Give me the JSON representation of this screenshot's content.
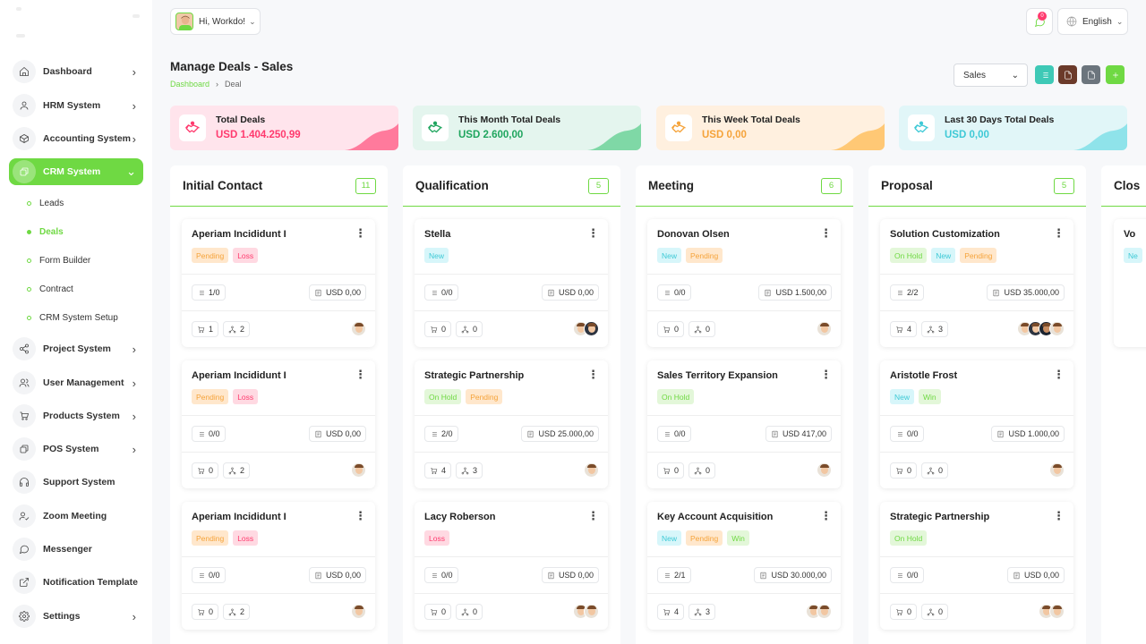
{
  "sidebar": {
    "items": [
      {
        "label": "Dashboard",
        "icon": "home-icon",
        "chevron": true
      },
      {
        "label": "HRM System",
        "icon": "user-icon",
        "chevron": true
      },
      {
        "label": "Accounting System",
        "icon": "box-icon",
        "chevron": true
      },
      {
        "label": "CRM System",
        "icon": "layers-icon",
        "chevron": true,
        "active": true
      },
      {
        "label": "Project System",
        "icon": "share-icon",
        "chevron": true
      },
      {
        "label": "User Management",
        "icon": "users-icon",
        "chevron": true
      },
      {
        "label": "Products System",
        "icon": "cart-icon",
        "chevron": true
      },
      {
        "label": "POS System",
        "icon": "layers-icon",
        "chevron": true
      },
      {
        "label": "Support System",
        "icon": "headphones-icon",
        "chevron": false
      },
      {
        "label": "Zoom Meeting",
        "icon": "user-check-icon",
        "chevron": false
      },
      {
        "label": "Messenger",
        "icon": "message-icon",
        "chevron": false
      },
      {
        "label": "Notification Template",
        "icon": "external-icon",
        "chevron": false
      },
      {
        "label": "Settings",
        "icon": "gear-icon",
        "chevron": true
      }
    ],
    "crm_sub": [
      "Leads",
      "Deals",
      "Form Builder",
      "Contract",
      "CRM System Setup"
    ],
    "active_sub": "Deals"
  },
  "topbar": {
    "greeting": "Hi, Workdo!",
    "notification_count": "0",
    "language": "English"
  },
  "header": {
    "title": "Manage Deals - Sales",
    "breadcrumb": [
      "Dashboard",
      "Deal"
    ],
    "pipeline": "Sales"
  },
  "colors": {
    "accent": "#6fd943",
    "toolbar": [
      "#3ec9b6",
      "#6b3a2a",
      "#6c757d",
      "#6fd943"
    ]
  },
  "stats": [
    {
      "title": "Total Deals",
      "value": "USD 1.404.250,99",
      "bg": "#ffe4ec",
      "color": "#ff3a6e",
      "wave": "#ff7a9c"
    },
    {
      "title": "This Month Total Deals",
      "value": "USD 2.600,00",
      "bg": "#e4f5ee",
      "color": "#1fa55e",
      "wave": "#7fd8a6"
    },
    {
      "title": "This Week Total Deals",
      "value": "USD 0,00",
      "bg": "#fff0df",
      "color": "#f5a33a",
      "wave": "#ffc875"
    },
    {
      "title": "Last 30 Days Total Deals",
      "value": "USD 0,00",
      "bg": "#e1f6f8",
      "color": "#3ec9d6",
      "wave": "#8fe3ea"
    }
  ],
  "columns": [
    {
      "title": "Initial Contact",
      "count": "11",
      "deals": [
        {
          "name": "Aperiam Incididunt I",
          "tags": [
            [
              "Pending",
              "pending"
            ],
            [
              "Loss",
              "loss"
            ]
          ],
          "tasks": "1/0",
          "price": "USD 0,00",
          "products": "1",
          "sources": "2",
          "avatars": [
            "a"
          ]
        },
        {
          "name": "Aperiam Incididunt I",
          "tags": [
            [
              "Pending",
              "pending"
            ],
            [
              "Loss",
              "loss"
            ]
          ],
          "tasks": "0/0",
          "price": "USD 0,00",
          "products": "0",
          "sources": "2",
          "avatars": [
            "a"
          ]
        },
        {
          "name": "Aperiam Incididunt I",
          "tags": [
            [
              "Pending",
              "pending"
            ],
            [
              "Loss",
              "loss"
            ]
          ],
          "tasks": "0/0",
          "price": "USD 0,00",
          "products": "0",
          "sources": "2",
          "avatars": [
            "a"
          ]
        }
      ]
    },
    {
      "title": "Qualification",
      "count": "5",
      "deals": [
        {
          "name": "Stella",
          "tags": [
            [
              "New",
              "new"
            ]
          ],
          "tasks": "0/0",
          "price": "USD 0,00",
          "products": "0",
          "sources": "0",
          "avatars": [
            "a",
            "b"
          ]
        },
        {
          "name": "Strategic Partnership",
          "tags": [
            [
              "On Hold",
              "onhold"
            ],
            [
              "Pending",
              "pending"
            ]
          ],
          "tasks": "2/0",
          "price": "USD 25.000,00",
          "products": "4",
          "sources": "3",
          "avatars": [
            "a"
          ]
        },
        {
          "name": "Lacy Roberson",
          "tags": [
            [
              "Loss",
              "loss"
            ]
          ],
          "tasks": "0/0",
          "price": "USD 0,00",
          "products": "0",
          "sources": "0",
          "avatars": [
            "a",
            "a"
          ]
        }
      ]
    },
    {
      "title": "Meeting",
      "count": "6",
      "deals": [
        {
          "name": "Donovan Olsen",
          "tags": [
            [
              "New",
              "new"
            ],
            [
              "Pending",
              "pending"
            ]
          ],
          "tasks": "0/0",
          "price": "USD 1.500,00",
          "products": "0",
          "sources": "0",
          "avatars": [
            "a"
          ]
        },
        {
          "name": "Sales Territory Expansion",
          "tags": [
            [
              "On Hold",
              "onhold"
            ]
          ],
          "tasks": "0/0",
          "price": "USD 417,00",
          "products": "0",
          "sources": "0",
          "avatars": [
            "a"
          ]
        },
        {
          "name": "Key Account Acquisition",
          "tags": [
            [
              "New",
              "new"
            ],
            [
              "Pending",
              "pending"
            ],
            [
              "Win",
              "win"
            ]
          ],
          "tasks": "2/1",
          "price": "USD 30.000,00",
          "products": "4",
          "sources": "3",
          "avatars": [
            "a",
            "a"
          ]
        }
      ]
    },
    {
      "title": "Proposal",
      "count": "5",
      "deals": [
        {
          "name": "Solution Customization",
          "tags": [
            [
              "On Hold",
              "onhold"
            ],
            [
              "New",
              "new"
            ],
            [
              "Pending",
              "pending"
            ]
          ],
          "tasks": "2/2",
          "price": "USD 35.000,00",
          "products": "4",
          "sources": "3",
          "avatars": [
            "a",
            "b",
            "c",
            "a"
          ]
        },
        {
          "name": "Aristotle Frost",
          "tags": [
            [
              "New",
              "new"
            ],
            [
              "Win",
              "win"
            ]
          ],
          "tasks": "0/0",
          "price": "USD 1.000,00",
          "products": "0",
          "sources": "0",
          "avatars": [
            "a"
          ]
        },
        {
          "name": "Strategic Partnership",
          "tags": [
            [
              "On Hold",
              "onhold"
            ]
          ],
          "tasks": "0/0",
          "price": "USD 0,00",
          "products": "0",
          "sources": "0",
          "avatars": [
            "a",
            "a"
          ]
        }
      ]
    },
    {
      "title": "Clos",
      "count": "",
      "deals": [
        {
          "name": "Vo",
          "tags": [
            [
              "Ne",
              "new"
            ]
          ],
          "tasks": "",
          "price": "",
          "products": "",
          "sources": "",
          "avatars": []
        }
      ]
    }
  ]
}
